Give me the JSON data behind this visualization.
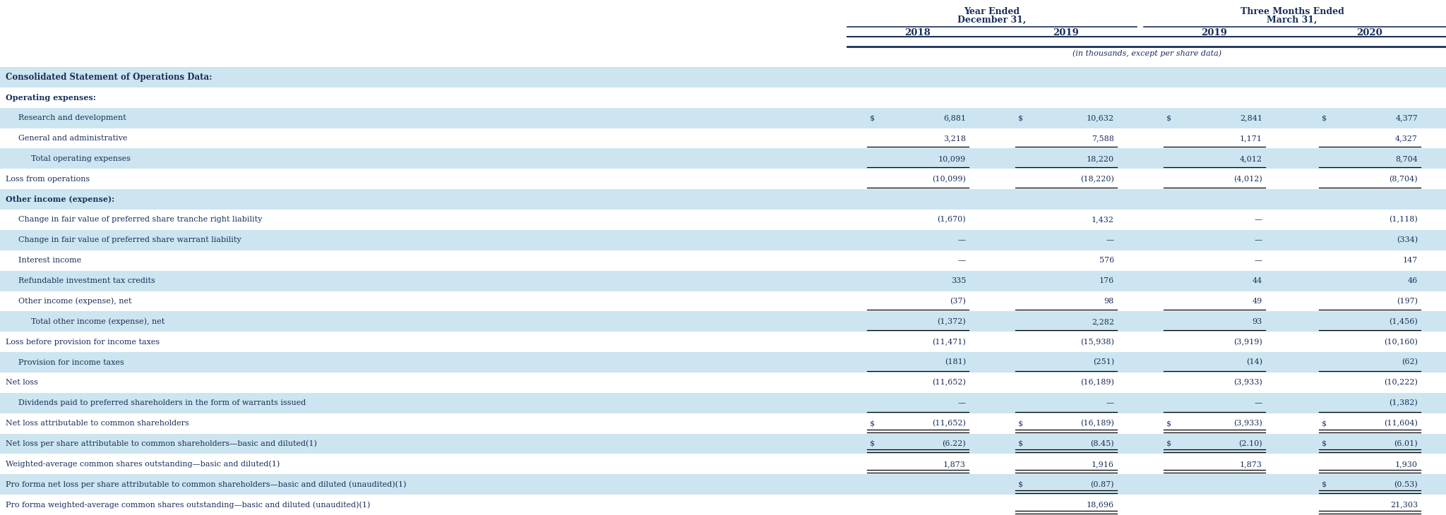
{
  "figsize": [
    20.48,
    7.3
  ],
  "dpi": 100,
  "bg_light": "#cce5f0",
  "bg_white": "#ffffff",
  "text_dark": "#1a2f5a",
  "header_top_text1": "Year Ended",
  "header_top_text2": "December 31,",
  "header_top_text3": "Three Months Ended",
  "header_top_text4": "March 31,",
  "col_years": [
    "2018",
    "2019",
    "2019",
    "2020"
  ],
  "sub_header": "(in thousands, except per share data)",
  "section_title": "Consolidated Statement of Operations Data:",
  "rows": [
    {
      "label": "Operating expenses:",
      "indent": 0,
      "v": [
        "",
        "",
        "",
        ""
      ],
      "bg": "white",
      "bold_label": false,
      "ul": false,
      "dul": false,
      "dollar": [
        false,
        false,
        false,
        false
      ]
    },
    {
      "label": "Research and development",
      "indent": 1,
      "v": [
        "6,881",
        "10,632",
        "2,841",
        "4,377"
      ],
      "bg": "light",
      "bold_label": false,
      "ul": false,
      "dul": false,
      "dollar": [
        true,
        true,
        true,
        true
      ]
    },
    {
      "label": "General and administrative",
      "indent": 1,
      "v": [
        "3,218",
        "7,588",
        "1,171",
        "4,327"
      ],
      "bg": "white",
      "bold_label": false,
      "ul": true,
      "dul": false,
      "dollar": [
        false,
        false,
        false,
        false
      ]
    },
    {
      "label": "Total operating expenses",
      "indent": 2,
      "v": [
        "10,099",
        "18,220",
        "4,012",
        "8,704"
      ],
      "bg": "light",
      "bold_label": false,
      "ul": true,
      "dul": false,
      "dollar": [
        false,
        false,
        false,
        false
      ]
    },
    {
      "label": "Loss from operations",
      "indent": 0,
      "v": [
        "(10,099)",
        "(18,220)",
        "(4,012)",
        "(8,704)"
      ],
      "bg": "white",
      "bold_label": false,
      "ul": true,
      "dul": false,
      "dollar": [
        false,
        false,
        false,
        false
      ]
    },
    {
      "label": "Other income (expense):",
      "indent": 0,
      "v": [
        "",
        "",
        "",
        ""
      ],
      "bg": "light",
      "bold_label": false,
      "ul": false,
      "dul": false,
      "dollar": [
        false,
        false,
        false,
        false
      ]
    },
    {
      "label": "Change in fair value of preferred share tranche right liability",
      "indent": 1,
      "v": [
        "(1,670)",
        "1,432",
        "—",
        "(1,118)"
      ],
      "bg": "white",
      "bold_label": false,
      "ul": false,
      "dul": false,
      "dollar": [
        false,
        false,
        false,
        false
      ]
    },
    {
      "label": "Change in fair value of preferred share warrant liability",
      "indent": 1,
      "v": [
        "—",
        "—",
        "—",
        "(334)"
      ],
      "bg": "light",
      "bold_label": false,
      "ul": false,
      "dul": false,
      "dollar": [
        false,
        false,
        false,
        false
      ]
    },
    {
      "label": "Interest income",
      "indent": 1,
      "v": [
        "—",
        "576",
        "—",
        "147"
      ],
      "bg": "white",
      "bold_label": false,
      "ul": false,
      "dul": false,
      "dollar": [
        false,
        false,
        false,
        false
      ]
    },
    {
      "label": "Refundable investment tax credits",
      "indent": 1,
      "v": [
        "335",
        "176",
        "44",
        "46"
      ],
      "bg": "light",
      "bold_label": false,
      "ul": false,
      "dul": false,
      "dollar": [
        false,
        false,
        false,
        false
      ]
    },
    {
      "label": "Other income (expense), net",
      "indent": 1,
      "v": [
        "(37)",
        "98",
        "49",
        "(197)"
      ],
      "bg": "white",
      "bold_label": false,
      "ul": true,
      "dul": false,
      "dollar": [
        false,
        false,
        false,
        false
      ]
    },
    {
      "label": "Total other income (expense), net",
      "indent": 2,
      "v": [
        "(1,372)",
        "2,282",
        "93",
        "(1,456)"
      ],
      "bg": "light",
      "bold_label": false,
      "ul": true,
      "dul": false,
      "dollar": [
        false,
        false,
        false,
        false
      ]
    },
    {
      "label": "Loss before provision for income taxes",
      "indent": 0,
      "v": [
        "(11,471)",
        "(15,938)",
        "(3,919)",
        "(10,160)"
      ],
      "bg": "white",
      "bold_label": false,
      "ul": false,
      "dul": false,
      "dollar": [
        false,
        false,
        false,
        false
      ]
    },
    {
      "label": "Provision for income taxes",
      "indent": 1,
      "v": [
        "(181)",
        "(251)",
        "(14)",
        "(62)"
      ],
      "bg": "light",
      "bold_label": false,
      "ul": true,
      "dul": false,
      "dollar": [
        false,
        false,
        false,
        false
      ]
    },
    {
      "label": "Net loss",
      "indent": 0,
      "v": [
        "(11,652)",
        "(16,189)",
        "(3,933)",
        "(10,222)"
      ],
      "bg": "white",
      "bold_label": false,
      "ul": false,
      "dul": false,
      "dollar": [
        false,
        false,
        false,
        false
      ]
    },
    {
      "label": "Dividends paid to preferred shareholders in the form of warrants issued",
      "indent": 1,
      "v": [
        "—",
        "—",
        "—",
        "(1,382)"
      ],
      "bg": "light",
      "bold_label": false,
      "ul": true,
      "dul": false,
      "dollar": [
        false,
        false,
        false,
        false
      ]
    },
    {
      "label": "Net loss attributable to common shareholders",
      "indent": 0,
      "v": [
        "(11,652)",
        "(16,189)",
        "(3,933)",
        "(11,604)"
      ],
      "bg": "white",
      "bold_label": false,
      "ul": false,
      "dul": true,
      "dollar": [
        true,
        true,
        true,
        true
      ]
    },
    {
      "label": "Net loss per share attributable to common shareholders—basic and diluted(1)",
      "indent": 0,
      "v": [
        "(6.22)",
        "(8.45)",
        "(2.10)",
        "(6.01)"
      ],
      "bg": "light",
      "bold_label": false,
      "ul": false,
      "dul": true,
      "dollar": [
        true,
        true,
        true,
        true
      ]
    },
    {
      "label": "Weighted-average common shares outstanding—basic and diluted(1)",
      "indent": 0,
      "v": [
        "1,873",
        "1,916",
        "1,873",
        "1,930"
      ],
      "bg": "white",
      "bold_label": false,
      "ul": false,
      "dul": true,
      "dollar": [
        false,
        false,
        false,
        false
      ]
    },
    {
      "label": "Pro forma net loss per share attributable to common shareholders—basic and diluted (unaudited)(1)",
      "indent": 0,
      "v": [
        "",
        "(0.87)",
        "",
        "(0.53)"
      ],
      "bg": "light",
      "bold_label": false,
      "ul": false,
      "dul": true,
      "dollar": [
        false,
        true,
        false,
        true
      ]
    },
    {
      "label": "Pro forma weighted-average common shares outstanding—basic and diluted (unaudited)(1)",
      "indent": 0,
      "v": [
        "",
        "18,696",
        "",
        "21,303"
      ],
      "bg": "white",
      "bold_label": false,
      "ul": false,
      "dul": true,
      "dollar": [
        false,
        false,
        false,
        false
      ]
    }
  ]
}
